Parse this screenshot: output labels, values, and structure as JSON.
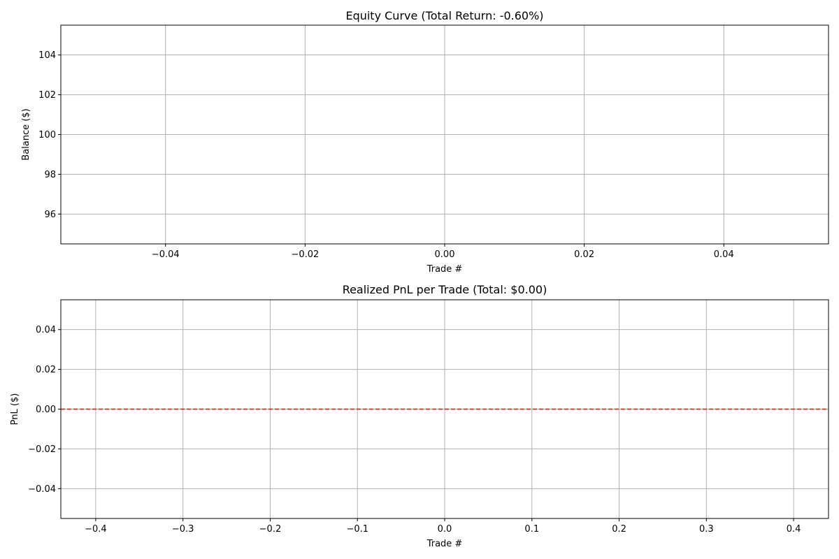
{
  "chart_data": [
    {
      "type": "line",
      "title": "Equity Curve (Total Return: -0.60%)",
      "xlabel": "Trade #",
      "ylabel": "Balance ($)",
      "xlim": [
        -0.055,
        0.055
      ],
      "ylim": [
        94.5,
        105.5
      ],
      "x_ticks": [
        -0.04,
        -0.02,
        0.0,
        0.02,
        0.04
      ],
      "x_tick_labels": [
        "−0.04",
        "−0.02",
        "0.00",
        "0.02",
        "0.04"
      ],
      "y_ticks": [
        96,
        98,
        100,
        102,
        104
      ],
      "y_tick_labels": [
        "96",
        "98",
        "100",
        "102",
        "104"
      ],
      "grid": true,
      "series": []
    },
    {
      "type": "bar",
      "title": "Realized PnL per Trade (Total: $0.00)",
      "xlabel": "Trade #",
      "ylabel": "PnL ($)",
      "xlim": [
        -0.44,
        0.44
      ],
      "ylim": [
        -0.055,
        0.055
      ],
      "x_ticks": [
        -0.4,
        -0.3,
        -0.2,
        -0.1,
        0.0,
        0.1,
        0.2,
        0.3,
        0.4
      ],
      "x_tick_labels": [
        "−0.4",
        "−0.3",
        "−0.2",
        "−0.1",
        "0.0",
        "0.1",
        "0.2",
        "0.3",
        "0.4"
      ],
      "y_ticks": [
        -0.04,
        -0.02,
        0.0,
        0.02,
        0.04
      ],
      "y_tick_labels": [
        "−0.04",
        "−0.02",
        "0.00",
        "0.02",
        "0.04"
      ],
      "grid": true,
      "reference_line": {
        "y": 0,
        "style": "dashed",
        "color": "#ff0000"
      },
      "series": []
    }
  ]
}
